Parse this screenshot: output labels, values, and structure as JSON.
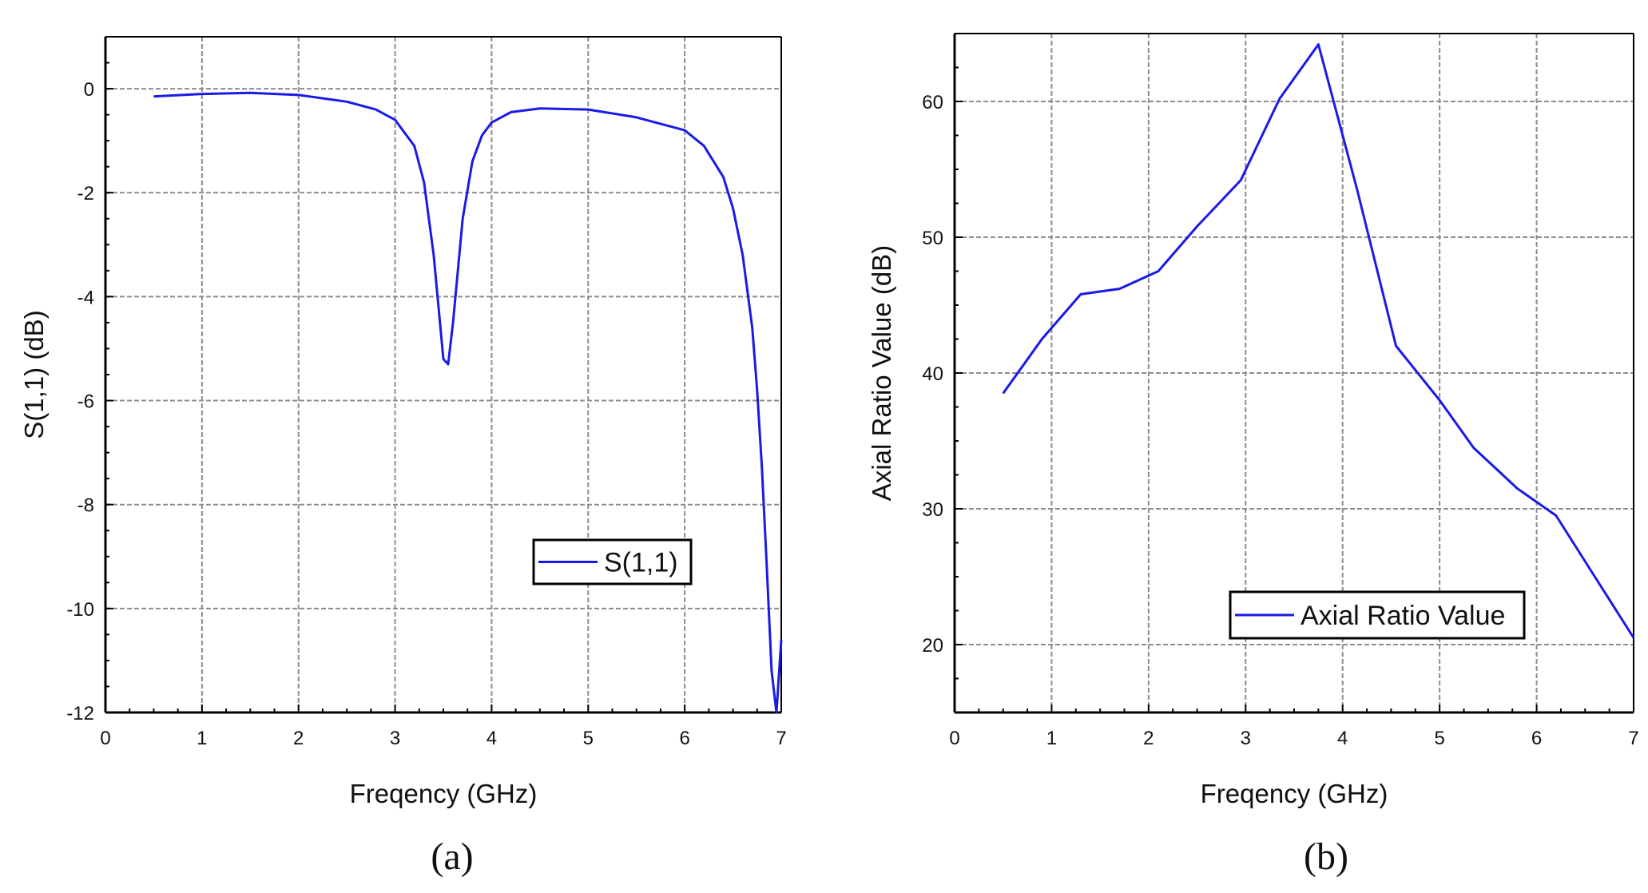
{
  "chart_data": [
    {
      "type": "line",
      "panel_label": "(a)",
      "xlabel": "Freqency (GHz)",
      "ylabel": "S(1,1) (dB)",
      "xlim": [
        0,
        7
      ],
      "ylim": [
        -12,
        1
      ],
      "xticks": [
        0,
        1,
        2,
        3,
        4,
        5,
        6,
        7
      ],
      "yticks": [
        0,
        -2,
        -4,
        -6,
        -8,
        -10,
        -12
      ],
      "grid": true,
      "legend_position": "lower-right",
      "series": [
        {
          "name": "S(1,1)",
          "color": "#1a1ae6",
          "x": [
            0.5,
            1.0,
            1.5,
            2.0,
            2.5,
            2.8,
            3.0,
            3.2,
            3.3,
            3.4,
            3.5,
            3.55,
            3.6,
            3.7,
            3.8,
            3.9,
            4.0,
            4.2,
            4.5,
            5.0,
            5.5,
            6.0,
            6.2,
            6.4,
            6.5,
            6.6,
            6.7,
            6.75,
            6.8,
            6.85,
            6.9,
            6.95,
            7.0
          ],
          "y": [
            -0.15,
            -0.1,
            -0.08,
            -0.12,
            -0.25,
            -0.4,
            -0.6,
            -1.1,
            -1.8,
            -3.2,
            -5.2,
            -5.3,
            -4.5,
            -2.5,
            -1.4,
            -0.9,
            -0.65,
            -0.45,
            -0.38,
            -0.4,
            -0.55,
            -0.8,
            -1.1,
            -1.7,
            -2.3,
            -3.2,
            -4.6,
            -5.8,
            -7.3,
            -9.2,
            -11.2,
            -12.0,
            -10.6
          ]
        }
      ]
    },
    {
      "type": "line",
      "panel_label": "(b)",
      "xlabel": "Freqency (GHz)",
      "ylabel": "Axial Ratio Value (dB)",
      "xlim": [
        0,
        7
      ],
      "ylim": [
        15,
        65
      ],
      "xticks": [
        0,
        1,
        2,
        3,
        4,
        5,
        6,
        7
      ],
      "yticks": [
        20,
        30,
        40,
        50,
        60
      ],
      "grid": true,
      "legend_position": "lower-center",
      "series": [
        {
          "name": "Axial Ratio Value",
          "color": "#1a1ae6",
          "x": [
            0.5,
            0.9,
            1.3,
            1.7,
            2.1,
            2.5,
            2.95,
            3.35,
            3.75,
            4.15,
            4.55,
            5.0,
            5.35,
            5.8,
            6.2,
            6.6,
            7.0
          ],
          "y": [
            38.5,
            42.5,
            45.8,
            46.2,
            47.5,
            50.8,
            54.2,
            60.2,
            64.2,
            53.5,
            42.0,
            38.0,
            34.5,
            31.5,
            29.5,
            25.0,
            20.5
          ]
        }
      ]
    }
  ]
}
